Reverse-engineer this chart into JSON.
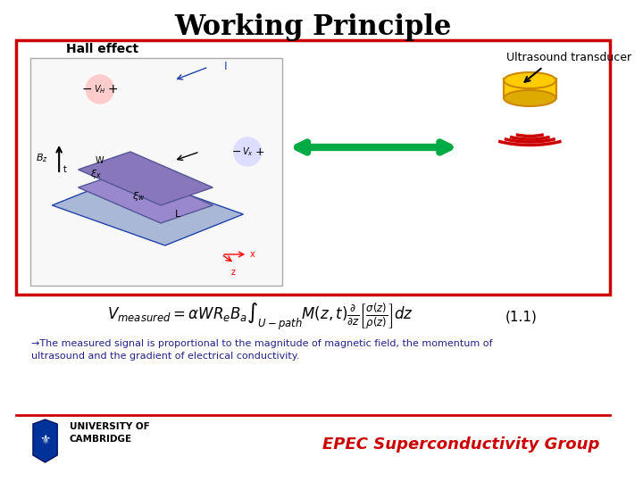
{
  "title": "Working Principle",
  "title_fontsize": 22,
  "title_fontweight": "bold",
  "bg_color": "#ffffff",
  "red_border_color": "#cc0000",
  "hall_effect_label": "Hall effect",
  "ultrasound_label": "Ultrasound transducer",
  "equation_label": "(1.1)",
  "bullet_text": "→The measured signal is proportional to the magnitude of magnetic field, the momentum of\nultrasound and the gradient of electrical conductivity.",
  "epec_text": "EPEC Superconductivity Group",
  "epec_color": "#cc0000",
  "cambridge_text": "UNIVERSITY OF\nCAMBRIDGE",
  "bottom_line_color": "#cc0000",
  "arrow_color": "#00aa44"
}
